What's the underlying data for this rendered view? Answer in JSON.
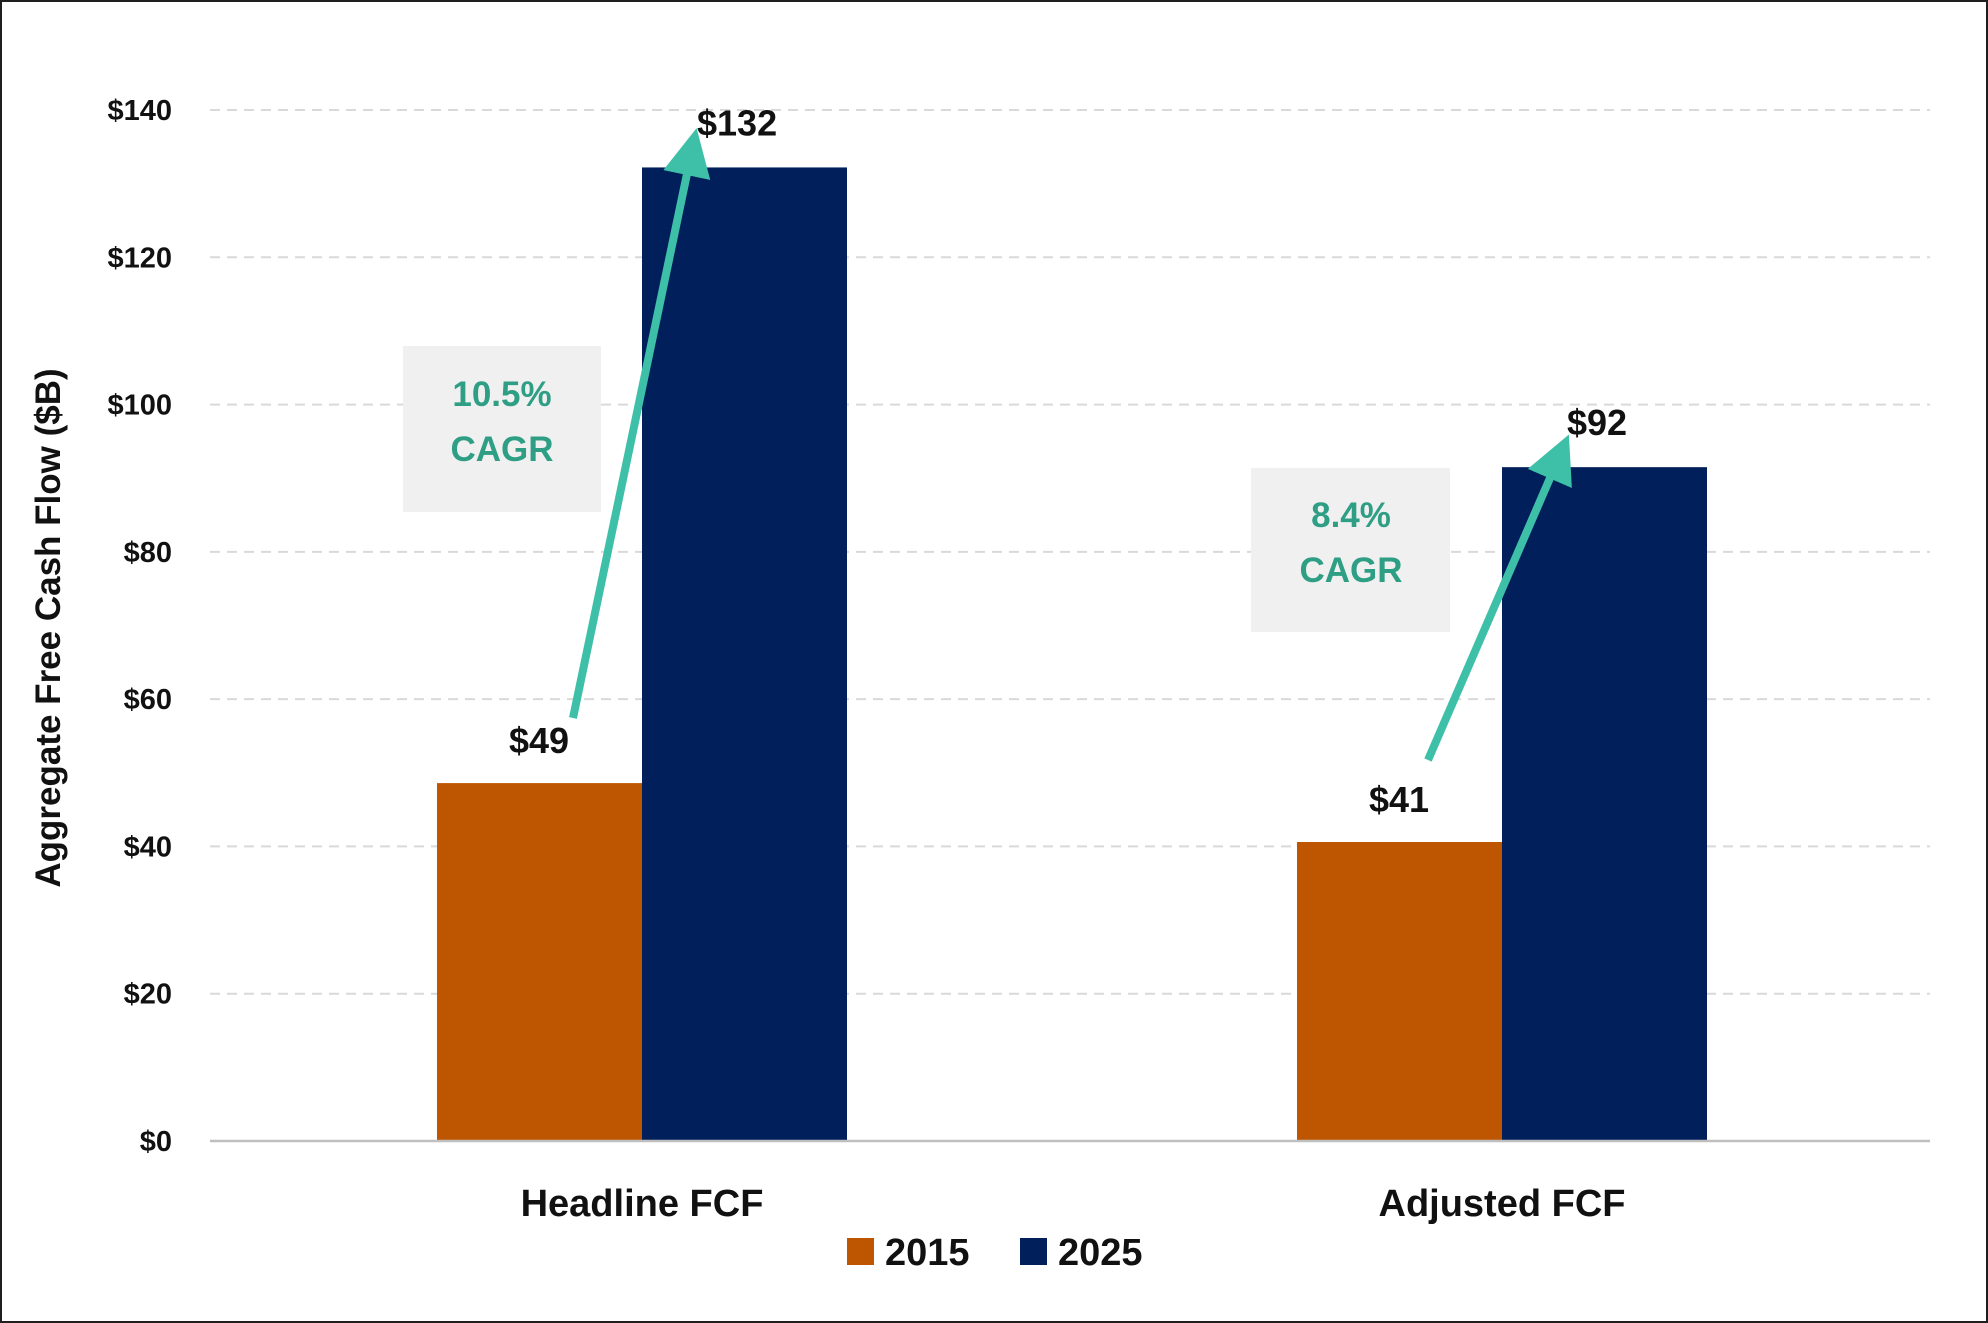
{
  "colors": {
    "series_2015": "#BE5500",
    "series_2025": "#001F5B",
    "arrow": "#3EC0A8",
    "cagr_text": "#2E9E84",
    "cagr_box": "#F0F0F0",
    "grid": "#D9D9D9",
    "axis": "#BFBFBF"
  },
  "chart_data": {
    "type": "bar",
    "title": "",
    "xlabel": "",
    "ylabel": "Aggregate Free Cash Flow ($B)",
    "ylim": [
      0,
      140
    ],
    "yticks": [
      0,
      20,
      40,
      60,
      80,
      100,
      120,
      140
    ],
    "ytick_labels": [
      "$0",
      "$20",
      "$40",
      "$60",
      "$80",
      "$100",
      "$120",
      "$140"
    ],
    "grid": true,
    "categories": [
      "Headline FCF",
      "Adjusted FCF"
    ],
    "series": [
      {
        "name": "2015",
        "values": [
          48.6,
          40.6
        ],
        "labels": [
          "$49",
          "$41"
        ]
      },
      {
        "name": "2025",
        "values": [
          132.2,
          91.5
        ],
        "labels": [
          "$132",
          "$92"
        ]
      }
    ],
    "legend_position": "bottom",
    "annotations": [
      {
        "category": "Headline FCF",
        "line1": "10.5%",
        "line2": "CAGR",
        "type": "growth-arrow"
      },
      {
        "category": "Adjusted FCF",
        "line1": "8.4%",
        "line2": "CAGR",
        "type": "growth-arrow"
      }
    ]
  }
}
